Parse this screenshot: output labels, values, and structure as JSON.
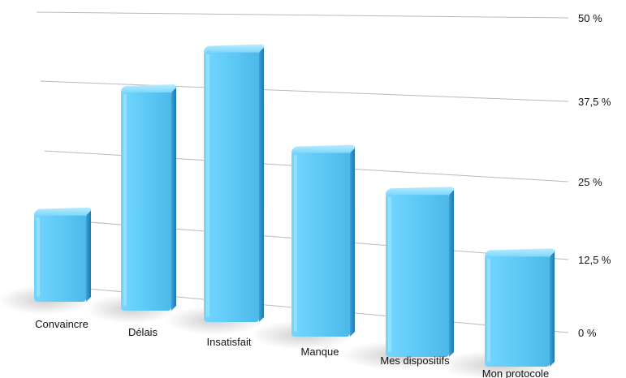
{
  "chart_data": {
    "type": "bar",
    "categories": [
      "Convaincre",
      "Délais",
      "Insatisfait",
      "Manque",
      "Mes dispositifs",
      "Mon protocole"
    ],
    "series": [
      {
        "values": [
          22,
          39,
          48,
          28,
          21,
          12
        ]
      }
    ],
    "ylim": [
      0,
      50
    ],
    "yticks": [
      "0 %",
      "12,5 %",
      "25 %",
      "37,5 %",
      "50 %"
    ],
    "ytick_values": [
      0,
      12.5,
      25,
      37.5,
      50
    ],
    "grid": true,
    "style": "3d-perspective",
    "colors": {
      "bar_front": "#5cc8f5",
      "bar_top": "#8fe0ff",
      "bar_side": "#2f8fc6",
      "grid": "#b9b9b9"
    }
  }
}
